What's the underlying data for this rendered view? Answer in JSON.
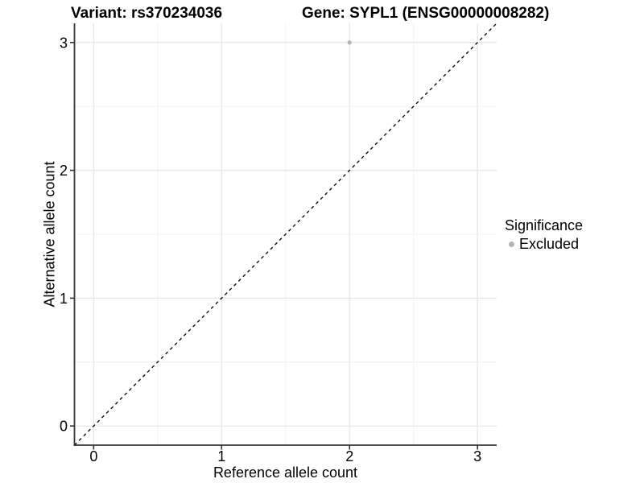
{
  "chart_data": {
    "type": "scatter",
    "title_left": "Variant: rs370234036",
    "title_right": "Gene: SYPL1 (ENSG00000008282)",
    "xlabel": "Reference allele count",
    "ylabel": "Alternative allele count",
    "xlim": [
      -0.15,
      3.15
    ],
    "ylim": [
      -0.15,
      3.15
    ],
    "xticks": [
      0,
      1,
      2,
      3
    ],
    "yticks": [
      0,
      1,
      2,
      3
    ],
    "minor_xticks": [
      0.5,
      1.5,
      2.5
    ],
    "minor_yticks": [
      0.5,
      1.5,
      2.5
    ],
    "grid": "on",
    "identity_line": {
      "type": "abline",
      "slope": 1,
      "intercept": 0,
      "style": "dashed",
      "color": "#000000"
    },
    "series": [
      {
        "name": "Excluded",
        "points": [
          {
            "x": 2,
            "y": 3
          }
        ],
        "color": "#b3b3b3"
      }
    ],
    "legend": {
      "title": "Significance",
      "position": "right",
      "items": [
        {
          "label": "Excluded",
          "color": "#b3b3b3"
        }
      ]
    },
    "colors": {
      "background": "#ffffff",
      "grid_major": "#e4e4e4",
      "grid_minor": "#f1f1f1",
      "axis_line": "#333333",
      "point": "#b3b3b3",
      "text": "#000000"
    }
  }
}
